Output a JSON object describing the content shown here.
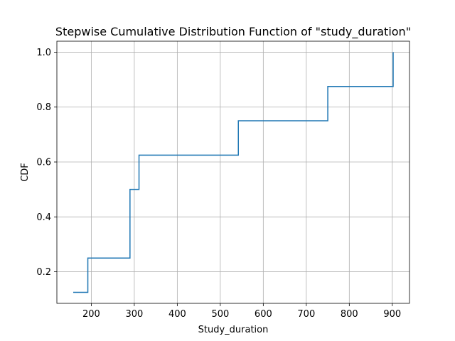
{
  "chart_data": {
    "type": "line",
    "subtype": "step-cdf",
    "title": "Stepwise Cumulative Distribution Function of \"study_duration\"",
    "xlabel": "Study_duration",
    "ylabel": "CDF",
    "xlim": [
      120,
      940
    ],
    "ylim": [
      0.085,
      1.04
    ],
    "x_ticks": [
      200,
      300,
      400,
      500,
      600,
      700,
      800,
      900
    ],
    "y_ticks": [
      0.2,
      0.4,
      0.6,
      0.8,
      1.0
    ],
    "x_tick_labels": [
      "200",
      "300",
      "400",
      "500",
      "600",
      "700",
      "800",
      "900"
    ],
    "y_tick_labels": [
      "0.2",
      "0.4",
      "0.6",
      "0.8",
      "1.0"
    ],
    "grid": true,
    "series": [
      {
        "color": "#1f77b4",
        "x": [
          158,
          192,
          290,
          311,
          542,
          750,
          902
        ],
        "y": [
          0.125,
          0.25,
          0.5,
          0.625,
          0.75,
          0.875,
          1.0
        ]
      }
    ]
  }
}
